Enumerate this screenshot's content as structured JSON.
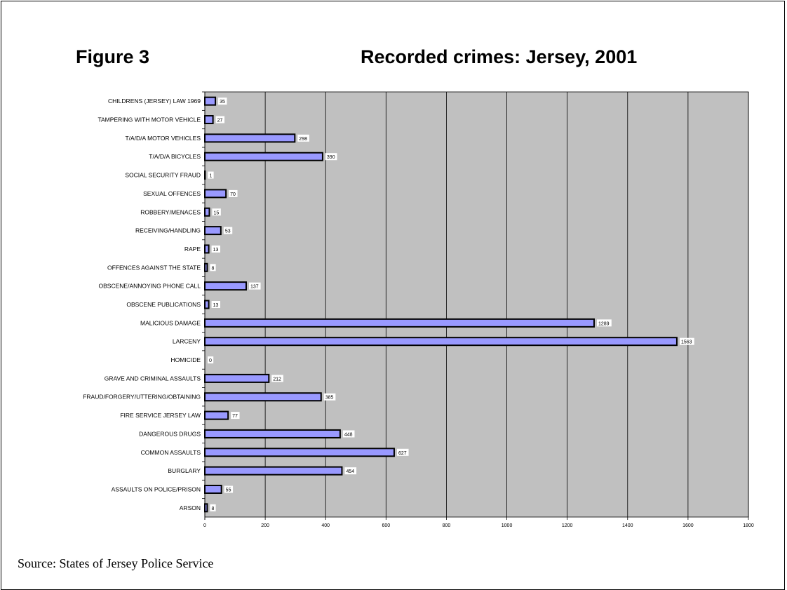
{
  "figure_label": "Figure 3",
  "title": "Recorded crimes: Jersey, 2001",
  "source": "Source: States of Jersey Police Service",
  "colors": {
    "plot_background": "#c0c0c0",
    "bar_fill": "#9999ff",
    "bar_stroke": "#000000",
    "gridline": "#000000"
  },
  "chart_data": {
    "type": "bar",
    "orientation": "horizontal",
    "title": "Recorded crimes: Jersey, 2001",
    "xlabel": "",
    "ylabel": "",
    "xlim": [
      0,
      1800
    ],
    "xticks": [
      0,
      200,
      400,
      600,
      800,
      1000,
      1200,
      1400,
      1600,
      1800
    ],
    "grid": true,
    "legend": "none",
    "data_labels": true,
    "categories": [
      "CHILDRENS (JERSEY) LAW 1969",
      "TAMPERING WITH MOTOR VEHICLE",
      "T/A/D/A MOTOR VEHICLES",
      "T/A/D/A BICYCLES",
      "SOCIAL SECURITY FRAUD",
      "SEXUAL OFFENCES",
      "ROBBERY/MENACES",
      "RECEIVING/HANDLING",
      "RAPE",
      "OFFENCES AGAINST THE STATE",
      "OBSCENE/ANNOYING PHONE CALL",
      "OBSCENE PUBLICATIONS",
      "MALICIOUS DAMAGE",
      "LARCENY",
      "HOMICIDE",
      "GRAVE AND CRIMINAL ASSAULTS",
      "FRAUD/FORGERY/UTTERING/OBTAINING",
      "FIRE SERVICE JERSEY LAW",
      "DANGEROUS DRUGS",
      "COMMON ASSAULTS",
      "BURGLARY",
      "ASSAULTS ON POLICE/PRISON",
      "ARSON"
    ],
    "values": [
      35,
      27,
      298,
      390,
      1,
      70,
      15,
      53,
      13,
      8,
      137,
      13,
      1289,
      1563,
      0,
      212,
      385,
      77,
      448,
      627,
      454,
      55,
      8
    ]
  }
}
